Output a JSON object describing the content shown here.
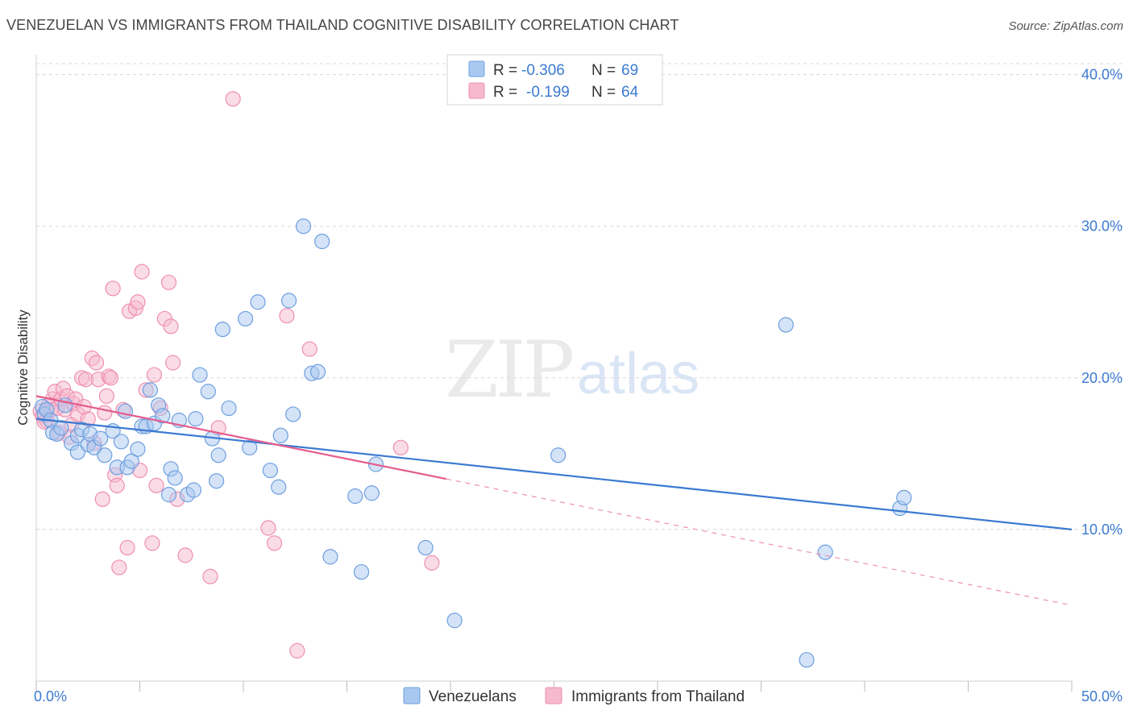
{
  "title": "VENEZUELAN VS IMMIGRANTS FROM THAILAND COGNITIVE DISABILITY CORRELATION CHART",
  "source": "Source: ZipAtlas.com",
  "watermark": {
    "zip": "ZIP",
    "atlas": "atlas"
  },
  "colors": {
    "blue": "#3b7ad1",
    "blue_fill": "#a9c8f0",
    "blue_stroke": "#6d9fe0",
    "pink": "#e35d8e",
    "pink_fill": "#f6b9cd",
    "pink_stroke": "#ef8fb0",
    "grid": "#d8d8d8"
  },
  "legend": {
    "rows": [
      {
        "r_label": "R =",
        "r_value": "-0.306",
        "n_label": "N =",
        "n_value": "69"
      },
      {
        "r_label": "R =",
        "r_value": "-0.199",
        "n_label": "N =",
        "n_value": "64"
      }
    ]
  },
  "bottom_legend": [
    "Venezuelans",
    "Immigrants from Thailand"
  ],
  "chart_data": {
    "type": "scatter",
    "title": "VENEZUELAN VS IMMIGRANTS FROM THAILAND COGNITIVE DISABILITY CORRELATION CHART",
    "xlabel": "",
    "ylabel": "Cognitive Disability",
    "xlim": [
      0,
      50
    ],
    "ylim": [
      0,
      42
    ],
    "x_tick_labels": [
      "0.0%",
      "50.0%"
    ],
    "y_ticks": [
      10,
      20,
      30,
      40
    ],
    "y_tick_labels": [
      "10.0%",
      "20.0%",
      "30.0%",
      "40.0%"
    ],
    "grid": true,
    "legend_position": "top-center",
    "series": [
      {
        "name": "Venezuelans",
        "r": -0.306,
        "n": 69,
        "trend": {
          "x": [
            0,
            50
          ],
          "y": [
            17.3,
            10.0
          ],
          "dashed_from": null
        },
        "points": [
          [
            0.3,
            18.1
          ],
          [
            0.4,
            17.6
          ],
          [
            0.5,
            17.9
          ],
          [
            0.7,
            17.2
          ],
          [
            0.8,
            16.4
          ],
          [
            1.0,
            16.3
          ],
          [
            1.2,
            16.7
          ],
          [
            1.4,
            18.2
          ],
          [
            1.7,
            15.7
          ],
          [
            2.0,
            15.1
          ],
          [
            2.0,
            16.2
          ],
          [
            2.2,
            16.6
          ],
          [
            2.5,
            15.6
          ],
          [
            2.6,
            16.3
          ],
          [
            2.8,
            15.4
          ],
          [
            3.1,
            16.0
          ],
          [
            3.3,
            14.9
          ],
          [
            3.7,
            16.5
          ],
          [
            3.9,
            14.1
          ],
          [
            4.1,
            15.8
          ],
          [
            4.3,
            17.8
          ],
          [
            4.4,
            14.1
          ],
          [
            4.6,
            14.5
          ],
          [
            4.9,
            15.3
          ],
          [
            5.1,
            16.8
          ],
          [
            5.3,
            16.8
          ],
          [
            5.5,
            19.2
          ],
          [
            5.7,
            17.0
          ],
          [
            5.9,
            18.2
          ],
          [
            6.1,
            17.5
          ],
          [
            6.4,
            12.3
          ],
          [
            6.5,
            14.0
          ],
          [
            6.7,
            13.4
          ],
          [
            6.9,
            17.2
          ],
          [
            7.3,
            12.3
          ],
          [
            7.6,
            12.6
          ],
          [
            7.7,
            17.3
          ],
          [
            7.9,
            20.2
          ],
          [
            8.3,
            19.1
          ],
          [
            8.5,
            16.0
          ],
          [
            8.7,
            13.2
          ],
          [
            8.8,
            14.9
          ],
          [
            9.0,
            23.2
          ],
          [
            9.3,
            18.0
          ],
          [
            10.1,
            23.9
          ],
          [
            10.3,
            15.4
          ],
          [
            10.7,
            25.0
          ],
          [
            11.3,
            13.9
          ],
          [
            11.7,
            12.8
          ],
          [
            11.8,
            16.2
          ],
          [
            12.2,
            25.1
          ],
          [
            12.4,
            17.6
          ],
          [
            12.9,
            30.0
          ],
          [
            13.3,
            20.3
          ],
          [
            13.6,
            20.4
          ],
          [
            13.8,
            29.0
          ],
          [
            14.2,
            8.2
          ],
          [
            15.4,
            12.2
          ],
          [
            15.7,
            7.2
          ],
          [
            16.2,
            12.4
          ],
          [
            16.4,
            14.3
          ],
          [
            18.8,
            8.8
          ],
          [
            20.2,
            4.0
          ],
          [
            25.2,
            14.9
          ],
          [
            36.2,
            23.5
          ],
          [
            37.2,
            1.4
          ],
          [
            38.1,
            8.5
          ],
          [
            41.7,
            11.4
          ],
          [
            41.9,
            12.1
          ]
        ]
      },
      {
        "name": "Immigrants from Thailand",
        "r": -0.199,
        "n": 64,
        "trend": {
          "x": [
            0,
            50
          ],
          "y": [
            18.8,
            5.0
          ],
          "dashed_from": 19.8
        },
        "points": [
          [
            0.2,
            17.8
          ],
          [
            0.3,
            17.5
          ],
          [
            0.5,
            17.2
          ],
          [
            0.6,
            18.2
          ],
          [
            0.7,
            17.9
          ],
          [
            0.8,
            18.6
          ],
          [
            0.9,
            19.1
          ],
          [
            1.0,
            18.0
          ],
          [
            1.1,
            16.4
          ],
          [
            1.2,
            18.6
          ],
          [
            1.3,
            19.3
          ],
          [
            1.4,
            17.9
          ],
          [
            1.5,
            18.8
          ],
          [
            1.7,
            16.9
          ],
          [
            1.8,
            18.3
          ],
          [
            1.9,
            18.6
          ],
          [
            2.0,
            17.6
          ],
          [
            2.2,
            20.0
          ],
          [
            2.4,
            19.9
          ],
          [
            2.5,
            17.3
          ],
          [
            2.7,
            21.3
          ],
          [
            2.8,
            15.7
          ],
          [
            2.9,
            21.0
          ],
          [
            3.0,
            19.9
          ],
          [
            3.2,
            12.0
          ],
          [
            3.3,
            17.7
          ],
          [
            3.4,
            18.8
          ],
          [
            3.5,
            20.1
          ],
          [
            3.6,
            20.0
          ],
          [
            3.7,
            25.9
          ],
          [
            3.8,
            13.6
          ],
          [
            3.9,
            12.9
          ],
          [
            4.0,
            7.5
          ],
          [
            4.2,
            17.9
          ],
          [
            4.4,
            8.8
          ],
          [
            4.5,
            24.4
          ],
          [
            4.8,
            24.6
          ],
          [
            4.9,
            25.0
          ],
          [
            5.0,
            13.9
          ],
          [
            5.1,
            27.0
          ],
          [
            5.3,
            19.2
          ],
          [
            5.6,
            9.1
          ],
          [
            5.7,
            20.2
          ],
          [
            5.8,
            12.9
          ],
          [
            6.0,
            18.0
          ],
          [
            6.2,
            23.9
          ],
          [
            6.4,
            26.3
          ],
          [
            6.5,
            23.4
          ],
          [
            6.6,
            21.0
          ],
          [
            6.8,
            12.0
          ],
          [
            7.2,
            8.3
          ],
          [
            8.4,
            6.9
          ],
          [
            8.8,
            16.7
          ],
          [
            9.5,
            38.4
          ],
          [
            11.2,
            10.1
          ],
          [
            11.5,
            9.1
          ],
          [
            12.1,
            24.1
          ],
          [
            12.6,
            2.0
          ],
          [
            13.2,
            21.9
          ],
          [
            17.6,
            15.4
          ],
          [
            19.1,
            7.8
          ],
          [
            0.4,
            17.1
          ],
          [
            1.6,
            16.1
          ],
          [
            2.3,
            18.1
          ]
        ]
      }
    ]
  }
}
